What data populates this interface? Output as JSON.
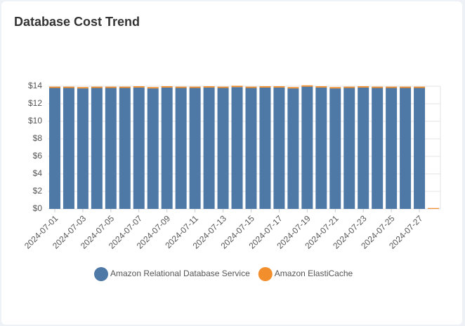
{
  "chart_data": {
    "type": "stacked_bar",
    "title": "Database Cost Trend",
    "categories": [
      "2024-07-01",
      null,
      "2024-07-03",
      null,
      "2024-07-05",
      null,
      "2024-07-07",
      null,
      "2024-07-09",
      null,
      "2024-07-11",
      null,
      "2024-07-13",
      null,
      "2024-07-15",
      null,
      "2024-07-17",
      null,
      "2024-07-19",
      null,
      "2024-07-21",
      null,
      "2024-07-23",
      null,
      "2024-07-25",
      null,
      "2024-07-27",
      null
    ],
    "series": [
      {
        "name": "Amazon Relational Database Service",
        "color": "#4e79a7",
        "values": [
          13.8,
          13.8,
          13.75,
          13.8,
          13.8,
          13.8,
          13.85,
          13.75,
          13.85,
          13.8,
          13.8,
          13.85,
          13.8,
          13.9,
          13.8,
          13.85,
          13.85,
          13.75,
          13.95,
          13.85,
          13.75,
          13.8,
          13.85,
          13.8,
          13.8,
          13.8,
          13.8,
          0
        ]
      },
      {
        "name": "Amazon ElastiCache",
        "color": "#f28e2b",
        "values": [
          0.15,
          0.15,
          0.15,
          0.15,
          0.15,
          0.15,
          0.15,
          0.15,
          0.15,
          0.15,
          0.15,
          0.15,
          0.15,
          0.15,
          0.15,
          0.15,
          0.15,
          0.15,
          0.15,
          0.15,
          0.15,
          0.15,
          0.15,
          0.15,
          0.15,
          0.15,
          0.15,
          0.1
        ]
      }
    ],
    "ylim": [
      0,
      14
    ],
    "yticks": [
      {
        "value": 0,
        "label": "$0"
      },
      {
        "value": 2,
        "label": "$2"
      },
      {
        "value": 4,
        "label": "$4"
      },
      {
        "value": 6,
        "label": "$6"
      },
      {
        "value": 8,
        "label": "$8"
      },
      {
        "value": 10,
        "label": "$10"
      },
      {
        "value": 12,
        "label": "$12"
      },
      {
        "value": 14,
        "label": "$14"
      }
    ],
    "grid": true,
    "legend": "bottom"
  }
}
